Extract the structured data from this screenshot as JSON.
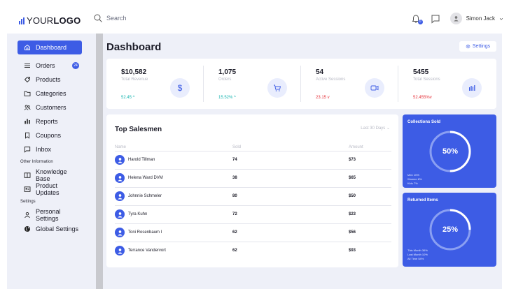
{
  "header": {
    "logo_light": "YOUR",
    "logo_bold": "LOGO",
    "search_placeholder": "Search",
    "notification_count": "0",
    "user_name": "Simon Jack",
    "colors": {
      "accent": "#3d5ce5"
    }
  },
  "sidebar": {
    "items": [
      {
        "label": "Dashboard",
        "icon": "home-icon",
        "active": true
      },
      {
        "label": "Orders",
        "icon": "list-icon",
        "badge": "24"
      },
      {
        "label": "Products",
        "icon": "tag-icon"
      },
      {
        "label": "Categories",
        "icon": "folder-icon"
      },
      {
        "label": "Customers",
        "icon": "users-icon"
      },
      {
        "label": "Reports",
        "icon": "chart-icon"
      },
      {
        "label": "Coupons",
        "icon": "bookmark-icon"
      },
      {
        "label": "Inbox",
        "icon": "message-icon"
      }
    ],
    "section_other": "Other Information",
    "other_items": [
      {
        "label": "Knowledge Base",
        "icon": "book-icon"
      },
      {
        "label": "Product Updates",
        "icon": "news-icon"
      }
    ],
    "section_settings": "Settings",
    "settings_items": [
      {
        "label": "Personal Settings",
        "icon": "user-icon"
      },
      {
        "label": "Global Settings",
        "icon": "globe-icon"
      }
    ]
  },
  "main": {
    "title": "Dashboard",
    "settings_label": "Settings",
    "stats": [
      {
        "value": "$10,582",
        "label": "Total Revenue",
        "change": "52.45",
        "direction": "up",
        "icon": "dollar-icon"
      },
      {
        "value": "1,075",
        "label": "Orders",
        "change": "15.52%",
        "direction": "up",
        "icon": "cart-icon"
      },
      {
        "value": "54",
        "label": "Active Sessions",
        "change": "23.15",
        "direction": "down",
        "icon": "video-icon"
      },
      {
        "value": "5455",
        "label": "Total Sessions",
        "change": "52.455%",
        "direction": "down",
        "icon": "bar-chart-icon"
      }
    ],
    "salesmen": {
      "title": "Top Salesmen",
      "filter": "Last 30 Days",
      "headers": {
        "name": "Name",
        "sold": "Sold",
        "amount": "Amount"
      },
      "rows": [
        {
          "name": "Harold Tillman",
          "sold": "74",
          "amount": "$73"
        },
        {
          "name": "Helena Ward DVM",
          "sold": "38",
          "amount": "$65"
        },
        {
          "name": "Johnnie Schmeler",
          "sold": "80",
          "amount": "$50"
        },
        {
          "name": "Tyra Kuhn",
          "sold": "72",
          "amount": "$23"
        },
        {
          "name": "Toni Rosenbaum I",
          "sold": "62",
          "amount": "$56"
        },
        {
          "name": "Terrance Vandervort",
          "sold": "62",
          "amount": "$93"
        }
      ]
    },
    "collections": {
      "title": "Collections Sold",
      "percent_value": 50,
      "percent_label": "50%",
      "legend": [
        "Men 10%",
        "Women 8%",
        "Kids 7%"
      ]
    },
    "returned": {
      "title": "Returned Items",
      "percent_value": 25,
      "percent_label": "25%",
      "legend": [
        "This Month 36%",
        "Last Month 10%",
        "All Time 54%"
      ]
    }
  }
}
